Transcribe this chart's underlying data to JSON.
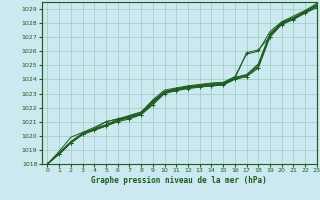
{
  "title": "Graphe pression niveau de la mer (hPa)",
  "bg_color": "#cce8f0",
  "grid_color": "#99ccbb",
  "line_color": "#1a5c1a",
  "xlim": [
    -0.5,
    23
  ],
  "ylim": [
    1018,
    1029.5
  ],
  "xticks": [
    0,
    1,
    2,
    3,
    4,
    5,
    6,
    7,
    8,
    9,
    10,
    11,
    12,
    13,
    14,
    15,
    16,
    17,
    18,
    19,
    20,
    21,
    22,
    23
  ],
  "yticks": [
    1018,
    1019,
    1020,
    1021,
    1022,
    1023,
    1024,
    1025,
    1026,
    1027,
    1028,
    1029
  ],
  "lines": [
    {
      "x": [
        0,
        1,
        2,
        3,
        4,
        5,
        6,
        7,
        8,
        9,
        10,
        11,
        12,
        13,
        14,
        15,
        16,
        17,
        18,
        19,
        20,
        21,
        22,
        23
      ],
      "y": [
        1018.0,
        1018.7,
        1019.5,
        1020.1,
        1020.4,
        1020.7,
        1021.0,
        1021.2,
        1021.5,
        1022.2,
        1023.0,
        1023.2,
        1023.35,
        1023.45,
        1023.55,
        1023.6,
        1024.0,
        1024.2,
        1024.8,
        1027.0,
        1027.9,
        1028.25,
        1028.7,
        1029.1
      ],
      "marker": "+",
      "lw": 0.7
    },
    {
      "x": [
        0,
        1,
        2,
        3,
        4,
        5,
        6,
        7,
        8,
        9,
        10,
        11,
        12,
        13,
        14,
        15,
        16,
        17,
        18,
        19,
        20,
        21,
        22,
        23
      ],
      "y": [
        1018.0,
        1018.7,
        1019.5,
        1020.1,
        1020.4,
        1020.7,
        1021.05,
        1021.3,
        1021.55,
        1022.3,
        1023.05,
        1023.25,
        1023.4,
        1023.5,
        1023.6,
        1023.65,
        1024.05,
        1024.25,
        1024.9,
        1027.15,
        1027.95,
        1028.3,
        1028.75,
        1029.2
      ],
      "marker": null,
      "lw": 0.7
    },
    {
      "x": [
        0,
        1,
        2,
        3,
        4,
        5,
        6,
        7,
        8,
        9,
        10,
        11,
        12,
        13,
        14,
        15,
        16,
        17,
        18,
        19,
        20,
        21,
        22,
        23
      ],
      "y": [
        1018.0,
        1018.75,
        1019.55,
        1020.15,
        1020.45,
        1020.75,
        1021.1,
        1021.35,
        1021.6,
        1022.35,
        1023.1,
        1023.3,
        1023.45,
        1023.55,
        1023.65,
        1023.7,
        1024.1,
        1024.3,
        1025.0,
        1027.2,
        1028.0,
        1028.35,
        1028.8,
        1029.25
      ],
      "marker": null,
      "lw": 0.7
    },
    {
      "x": [
        0,
        1,
        2,
        3,
        4,
        5,
        6,
        7,
        8,
        9,
        10,
        11,
        12,
        13,
        14,
        15,
        16,
        17,
        18,
        19,
        20,
        21,
        22,
        23
      ],
      "y": [
        1018.0,
        1018.8,
        1019.6,
        1020.2,
        1020.5,
        1020.8,
        1021.15,
        1021.4,
        1021.65,
        1022.4,
        1023.15,
        1023.35,
        1023.5,
        1023.6,
        1023.7,
        1023.75,
        1024.15,
        1024.35,
        1025.1,
        1027.25,
        1028.05,
        1028.4,
        1028.85,
        1029.3
      ],
      "marker": null,
      "lw": 0.7
    },
    {
      "x": [
        0,
        1,
        2,
        3,
        4,
        5,
        6,
        7,
        8,
        9,
        10,
        11,
        12,
        13,
        14,
        15,
        16,
        17,
        18,
        19,
        20,
        21,
        22,
        23
      ],
      "y": [
        1018.0,
        1018.9,
        1019.9,
        1020.25,
        1020.6,
        1021.0,
        1021.2,
        1021.45,
        1021.7,
        1022.55,
        1023.25,
        1023.4,
        1023.55,
        1023.65,
        1023.75,
        1023.8,
        1024.2,
        1025.8,
        1026.0,
        1027.4,
        1028.1,
        1028.5,
        1028.9,
        1029.4
      ],
      "marker": null,
      "lw": 0.7
    },
    {
      "x": [
        1,
        2,
        3,
        4,
        5,
        6,
        7,
        8,
        9,
        10,
        11,
        12,
        13,
        14,
        15,
        16,
        17,
        18,
        19,
        20,
        21,
        22,
        23
      ],
      "y": [
        1018.7,
        1019.5,
        1020.1,
        1020.5,
        1021.0,
        1021.2,
        1021.3,
        1021.5,
        1022.5,
        1023.1,
        1023.3,
        1023.45,
        1023.55,
        1023.55,
        1023.65,
        1024.05,
        1025.9,
        1026.1,
        1027.05,
        1027.95,
        1028.3,
        1028.8,
        1029.2
      ],
      "marker": "+",
      "lw": 0.7
    }
  ]
}
